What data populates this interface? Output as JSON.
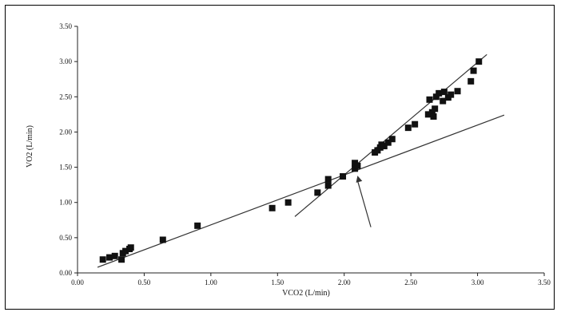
{
  "chart_data": {
    "type": "scatter",
    "title": "",
    "xlabel": "VCO2 (L/min)",
    "ylabel": "VO2 (L/min)",
    "xlim": [
      0.0,
      3.5
    ],
    "ylim": [
      0.0,
      3.5
    ],
    "x_ticks": [
      "0.00",
      "0.50",
      "1.00",
      "1.50",
      "2.00",
      "2.50",
      "3.00",
      "3.50"
    ],
    "y_ticks": [
      "0.00",
      "0.50",
      "1.00",
      "1.50",
      "2.00",
      "2.50",
      "3.00",
      "3.50"
    ],
    "grid": false,
    "legend": "none",
    "marker_color": "#111111",
    "series": [
      {
        "points": [
          [
            0.19,
            0.19
          ],
          [
            0.24,
            0.22
          ],
          [
            0.28,
            0.24
          ],
          [
            0.33,
            0.19
          ],
          [
            0.34,
            0.28
          ],
          [
            0.36,
            0.31
          ],
          [
            0.39,
            0.34
          ],
          [
            0.4,
            0.36
          ],
          [
            0.64,
            0.47
          ],
          [
            0.9,
            0.67
          ],
          [
            1.46,
            0.92
          ],
          [
            1.58,
            1.0
          ],
          [
            1.8,
            1.14
          ],
          [
            1.88,
            1.24
          ],
          [
            1.88,
            1.33
          ],
          [
            1.99,
            1.37
          ],
          [
            2.08,
            1.48
          ],
          [
            2.08,
            1.56
          ],
          [
            2.1,
            1.52
          ],
          [
            2.23,
            1.71
          ],
          [
            2.25,
            1.74
          ],
          [
            2.27,
            1.78
          ],
          [
            2.28,
            1.82
          ],
          [
            2.3,
            1.8
          ],
          [
            2.33,
            1.85
          ],
          [
            2.36,
            1.9
          ],
          [
            2.48,
            2.06
          ],
          [
            2.53,
            2.11
          ],
          [
            2.63,
            2.25
          ],
          [
            2.64,
            2.46
          ],
          [
            2.66,
            2.28
          ],
          [
            2.67,
            2.22
          ],
          [
            2.68,
            2.33
          ],
          [
            2.69,
            2.5
          ],
          [
            2.71,
            2.55
          ],
          [
            2.74,
            2.44
          ],
          [
            2.75,
            2.57
          ],
          [
            2.78,
            2.49
          ],
          [
            2.8,
            2.53
          ],
          [
            2.85,
            2.58
          ],
          [
            2.95,
            2.72
          ],
          [
            2.97,
            2.87
          ],
          [
            3.01,
            3.0
          ]
        ]
      }
    ],
    "fit_lines": [
      {
        "from": [
          0.15,
          0.08
        ],
        "to": [
          3.2,
          2.24
        ]
      },
      {
        "from": [
          1.63,
          0.8
        ],
        "to": [
          3.07,
          3.1
        ]
      }
    ],
    "annotation_arrow": {
      "from": [
        2.2,
        0.65
      ],
      "to": [
        2.1,
        1.38
      ]
    }
  }
}
